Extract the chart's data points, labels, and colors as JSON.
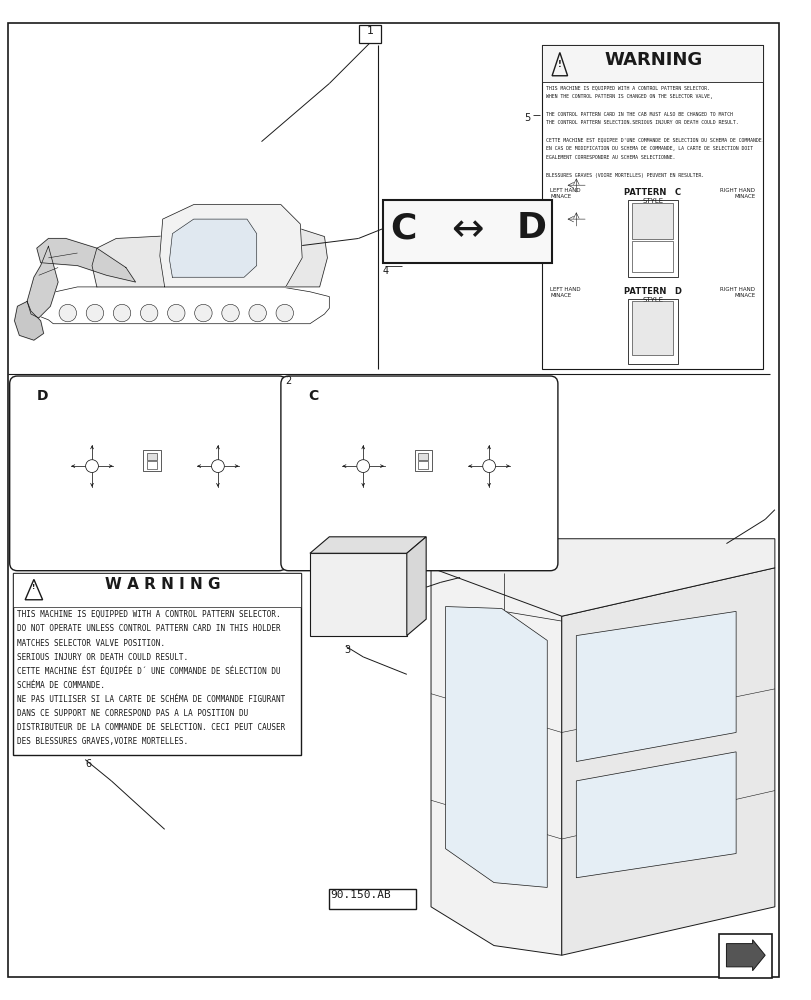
{
  "bg_color": "#ffffff",
  "line_color": "#1a1a1a",
  "warning_text_en": [
    "THIS MACHINE IS EQUIPPED WITH A CONTROL PATTERN SELECTOR.",
    "DO NOT OPERATE UNLESS CONTROL PATTERN CARD IN THIS HOLDER",
    "MATCHES SELECTOR VALVE POSITION.",
    "SERIOUS INJURY OR DEATH COULD RESULT.",
    "CETTE MACHINE ÉST ÉQUIPÉE D´ UNE COMMANDE DE SÉLECTION DU",
    "SCHÉMA DE COMMANDE.",
    "NE PAS UTILISER SI LA CARTE DE SCHÉMA DE COMMANDE FIGURANT",
    "DANS CE SUPPORT NE CORRESPOND PAS A LA POSITION DU",
    "DISTRIBUTEUR DE LA COMMANDE DE SELECTION. CECI PEUT CAUSER",
    "DES BLESSURES GRAVES,VOIRE MORTELLES."
  ],
  "ref_label": "90.150.AB"
}
